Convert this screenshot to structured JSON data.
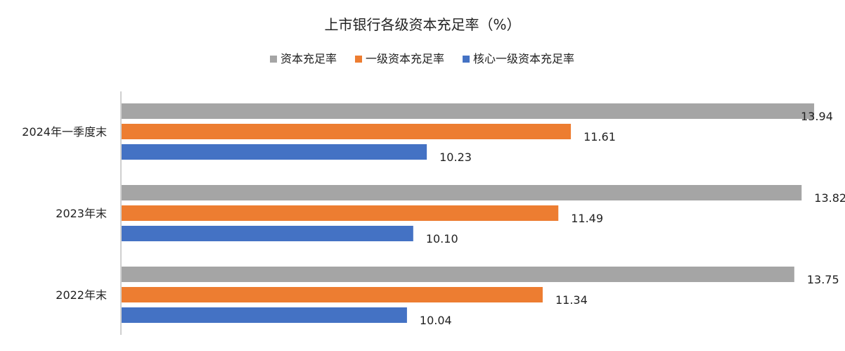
{
  "chart_data": {
    "type": "bar",
    "orientation": "horizontal",
    "title": "上市银行各级资本充足率（%）",
    "categories": [
      "2024年一季度末",
      "2023年末",
      "2022年末"
    ],
    "series": [
      {
        "name": "资本充足率",
        "color": "#A5A5A5",
        "values": [
          13.94,
          13.82,
          13.75
        ]
      },
      {
        "name": "一级资本充足率",
        "color": "#ED7D31",
        "values": [
          11.61,
          11.49,
          11.34
        ]
      },
      {
        "name": "核心一级资本充足率",
        "color": "#4472C4",
        "values": [
          10.23,
          10.1,
          10.04
        ]
      }
    ],
    "xlim": [
      7.3,
      14.0
    ],
    "legend_position": "top",
    "grid": false,
    "data_labels": true
  }
}
